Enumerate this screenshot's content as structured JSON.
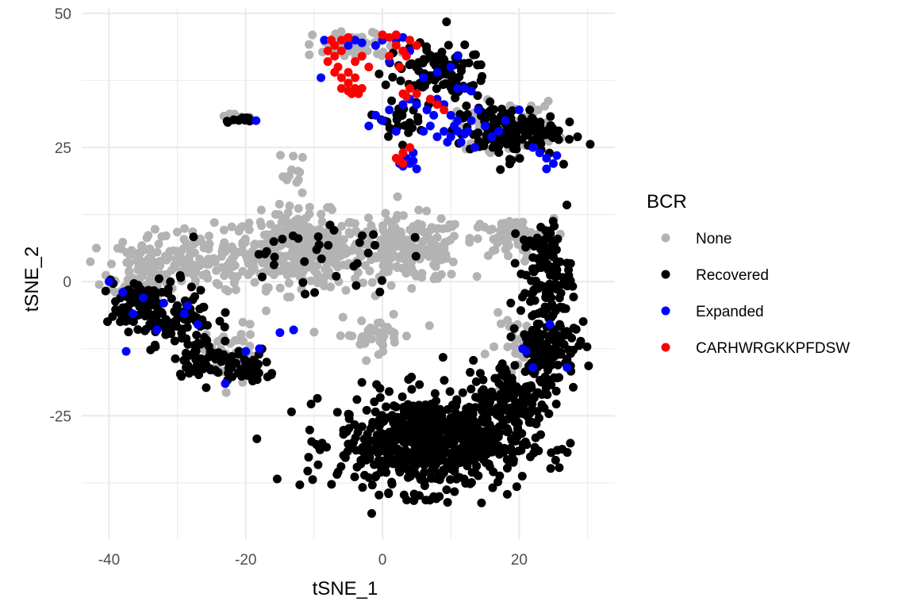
{
  "chart_data": {
    "type": "scatter",
    "title": "",
    "xlabel": "tSNE_1",
    "ylabel": "tSNE_2",
    "xlim": [
      -44,
      34
    ],
    "ylim": [
      -48,
      51
    ],
    "x_ticks": [
      -40,
      -20,
      0,
      20
    ],
    "y_ticks": [
      -25,
      0,
      25,
      50
    ],
    "x_tick_labels": [
      "-40",
      "-20",
      "0",
      "20"
    ],
    "y_tick_labels": [
      "-25",
      "0",
      "25",
      "50"
    ],
    "grid": true,
    "legend_position": "right",
    "legend": {
      "title": "BCR",
      "entries": [
        {
          "label": "None",
          "color": "#b3b3b3"
        },
        {
          "label": "Recovered",
          "color": "#000000"
        },
        {
          "label": "Expanded",
          "color": "#0000ff"
        },
        {
          "label": "CARHWRGKKPFDSW",
          "color": "#ff0000"
        }
      ]
    },
    "series": [
      {
        "name": "None",
        "color": "#b3b3b3",
        "clusters": [
          {
            "cx": -12,
            "cy": 6,
            "sx": 6.5,
            "sy": 4.5,
            "n": 340
          },
          {
            "cx": 4,
            "cy": 6,
            "sx": 5.5,
            "sy": 4,
            "n": 200
          },
          {
            "cx": 19,
            "cy": 8,
            "sx": 4,
            "sy": 2.5,
            "n": 80
          },
          {
            "cx": -34,
            "cy": 3,
            "sx": 4,
            "sy": 4,
            "n": 110
          },
          {
            "cx": -27,
            "cy": 4,
            "sx": 5,
            "sy": 4,
            "n": 80
          },
          {
            "cx": -22,
            "cy": -14,
            "sx": 2.5,
            "sy": 4,
            "n": 50
          },
          {
            "cx": -4,
            "cy": 44,
            "sx": 4,
            "sy": 1.8,
            "n": 60
          },
          {
            "cx": 18,
            "cy": 29,
            "sx": 5,
            "sy": 3,
            "n": 55
          },
          {
            "cx": -1,
            "cy": -10,
            "sx": 4,
            "sy": 2,
            "n": 40
          },
          {
            "cx": -22,
            "cy": 30.5,
            "sx": 2,
            "sy": 0.6,
            "n": 10
          },
          {
            "cx": -13,
            "cy": 20,
            "sx": 1.5,
            "sy": 3,
            "n": 14
          },
          {
            "cx": 20,
            "cy": -12,
            "sx": 3,
            "sy": 4,
            "n": 25
          }
        ]
      },
      {
        "name": "Recovered",
        "color": "#000000",
        "clusters": [
          {
            "cx": 7,
            "cy": -30,
            "sx": 9,
            "sy": 6,
            "n": 650
          },
          {
            "cx": 19,
            "cy": -22,
            "sx": 4,
            "sy": 5,
            "n": 120
          },
          {
            "cx": 24,
            "cy": -12,
            "sx": 3,
            "sy": 6,
            "n": 130
          },
          {
            "cx": 24,
            "cy": 2,
            "sx": 2.5,
            "sy": 6,
            "n": 110
          },
          {
            "cx": 18,
            "cy": 28,
            "sx": 5,
            "sy": 3.2,
            "n": 140
          },
          {
            "cx": 8,
            "cy": 39,
            "sx": 5,
            "sy": 3.5,
            "n": 100
          },
          {
            "cx": -32,
            "cy": -6,
            "sx": 5,
            "sy": 4,
            "n": 130
          },
          {
            "cx": -26,
            "cy": -14,
            "sx": 3,
            "sy": 2.5,
            "n": 50
          },
          {
            "cx": -20,
            "cy": -16,
            "sx": 3,
            "sy": 2.5,
            "n": 40
          },
          {
            "cx": 2,
            "cy": 30,
            "sx": 2,
            "sy": 2,
            "n": 25
          },
          {
            "cx": -21,
            "cy": 30.3,
            "sx": 1.6,
            "sy": 0.4,
            "n": 10
          },
          {
            "cx": -10,
            "cy": 5,
            "sx": 8,
            "sy": 5,
            "n": 35
          },
          {
            "cx": -36,
            "cy": -3,
            "sx": 2.5,
            "sy": 3,
            "n": 30
          }
        ]
      },
      {
        "name": "Expanded",
        "color": "#0000ff",
        "points": [
          [
            -40,
            0
          ],
          [
            -35,
            -3
          ],
          [
            -33,
            -9
          ],
          [
            -36.5,
            -6
          ],
          [
            -37.5,
            -13
          ],
          [
            -29,
            -6
          ],
          [
            -28.5,
            -4.5
          ],
          [
            -23,
            -19
          ],
          [
            -18,
            -12.5
          ],
          [
            -15,
            -9.5
          ],
          [
            -9,
            38
          ],
          [
            -8.5,
            45
          ],
          [
            -4,
            45
          ],
          [
            -5,
            44
          ],
          [
            -3,
            44.5
          ],
          [
            -1,
            44
          ],
          [
            0,
            45
          ],
          [
            1,
            41
          ],
          [
            2,
            45
          ],
          [
            3,
            45.5
          ],
          [
            0,
            30
          ],
          [
            -1,
            31
          ],
          [
            -2,
            29
          ],
          [
            1,
            32
          ],
          [
            3,
            33
          ],
          [
            4,
            34
          ],
          [
            5,
            33
          ],
          [
            2,
            28
          ],
          [
            3.5,
            23
          ],
          [
            2.5,
            22
          ],
          [
            4,
            22
          ],
          [
            4.5,
            24
          ],
          [
            3,
            21.5
          ],
          [
            5,
            21
          ],
          [
            4.5,
            22.5
          ],
          [
            6,
            28
          ],
          [
            7,
            29
          ],
          [
            8,
            27
          ],
          [
            9,
            28
          ],
          [
            10,
            27
          ],
          [
            11,
            28
          ],
          [
            11.5,
            26
          ],
          [
            12,
            27.5
          ],
          [
            12.5,
            28
          ],
          [
            10.5,
            29
          ],
          [
            13,
            30
          ],
          [
            15,
            29
          ],
          [
            17,
            28
          ],
          [
            20,
            32
          ],
          [
            10,
            31
          ],
          [
            9,
            33
          ],
          [
            11,
            36
          ],
          [
            12,
            36
          ],
          [
            13,
            35.5
          ],
          [
            8,
            39
          ],
          [
            10,
            40
          ],
          [
            11,
            42
          ],
          [
            6,
            38
          ],
          [
            4,
            43
          ],
          [
            23,
            24
          ],
          [
            24,
            23
          ],
          [
            25,
            22
          ],
          [
            24,
            21
          ],
          [
            25.5,
            23.5
          ],
          [
            22,
            25
          ],
          [
            16,
            27
          ],
          [
            14,
            32
          ],
          [
            18,
            30
          ],
          [
            8,
            34
          ],
          [
            11,
            30
          ],
          [
            -13,
            -9
          ],
          [
            24.5,
            -8
          ],
          [
            21,
            -13
          ],
          [
            22,
            -16
          ],
          [
            27,
            -16
          ],
          [
            -38,
            -2
          ],
          [
            20.5,
            -12.5
          ],
          [
            -27,
            -8
          ],
          [
            -32,
            -4
          ],
          [
            -20,
            -13
          ],
          [
            -18.5,
            30
          ],
          [
            9.5,
            26
          ],
          [
            13.5,
            25
          ],
          [
            6.5,
            32
          ],
          [
            7.5,
            31
          ]
        ]
      },
      {
        "name": "CARHWRGKKPFDSW",
        "color": "#ff0000",
        "points": [
          [
            -7,
            44
          ],
          [
            -6,
            43
          ],
          [
            -7,
            42
          ],
          [
            -8,
            41
          ],
          [
            -6.5,
            40
          ],
          [
            -5,
            39
          ],
          [
            -4,
            38
          ],
          [
            -6,
            38
          ],
          [
            -5,
            37
          ],
          [
            -4,
            36
          ],
          [
            -3,
            36
          ],
          [
            -5,
            35.5
          ],
          [
            -4.5,
            35
          ],
          [
            -3.5,
            35
          ],
          [
            -6,
            36
          ],
          [
            -7,
            39
          ],
          [
            -8,
            43
          ],
          [
            -6,
            45
          ],
          [
            -5,
            45.5
          ],
          [
            -7.5,
            45
          ],
          [
            0,
            46
          ],
          [
            1,
            45.5
          ],
          [
            2,
            44
          ],
          [
            3,
            43
          ],
          [
            3.5,
            42
          ],
          [
            4,
            45
          ],
          [
            2,
            46
          ],
          [
            1,
            42
          ],
          [
            2.5,
            40
          ],
          [
            5,
            44
          ],
          [
            3,
            35
          ],
          [
            4,
            36
          ],
          [
            5,
            35
          ],
          [
            3.5,
            34.5
          ],
          [
            7,
            34
          ],
          [
            8,
            33
          ],
          [
            9,
            32
          ],
          [
            2,
            23
          ],
          [
            3,
            24
          ],
          [
            4,
            25
          ],
          [
            2.5,
            22.5
          ],
          [
            3,
            22
          ],
          [
            -3,
            42
          ],
          [
            -2,
            40
          ],
          [
            -4,
            41
          ]
        ]
      }
    ]
  }
}
